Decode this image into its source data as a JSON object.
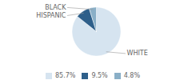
{
  "chart_data": {
    "type": "pie",
    "categories": [
      "WHITE",
      "HISPANIC",
      "BLACK"
    ],
    "values": [
      85.7,
      9.5,
      4.8
    ],
    "value_labels": [
      "85.7%",
      "9.5%",
      "4.8%"
    ],
    "colors": [
      "#d6e4f0",
      "#2e5f8a",
      "#8aafc7"
    ],
    "legend": "bottom"
  }
}
